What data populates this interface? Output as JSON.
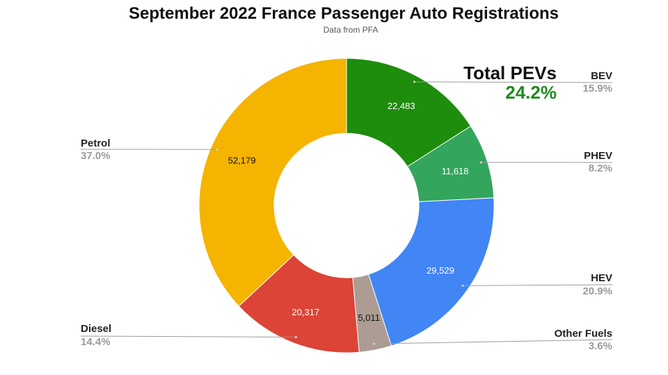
{
  "chart_data": {
    "type": "pie",
    "title": "September 2022 France Passenger Auto Registrations",
    "subtitle": "Data from PFA",
    "annotation": {
      "label": "Total PEVs",
      "value": "24.2%"
    },
    "slices": [
      {
        "name": "BEV",
        "value": 22483,
        "value_label": "22,483",
        "percent": "15.9%",
        "color": "#1e8c0c"
      },
      {
        "name": "PHEV",
        "value": 11618,
        "value_label": "11,618",
        "percent": "8.2%",
        "color": "#33a55d"
      },
      {
        "name": "HEV",
        "value": 29529,
        "value_label": "29,529",
        "percent": "20.9%",
        "color": "#4285f4"
      },
      {
        "name": "Other Fuels",
        "value": 5011,
        "value_label": "5,011",
        "percent": "3.6%",
        "color": "#ad9c93"
      },
      {
        "name": "Diesel",
        "value": 20317,
        "value_label": "20,317",
        "percent": "14.4%",
        "color": "#db4437"
      },
      {
        "name": "Petrol",
        "value": 52179,
        "value_label": "52,179",
        "percent": "37.0%",
        "color": "#f4b400"
      }
    ]
  }
}
